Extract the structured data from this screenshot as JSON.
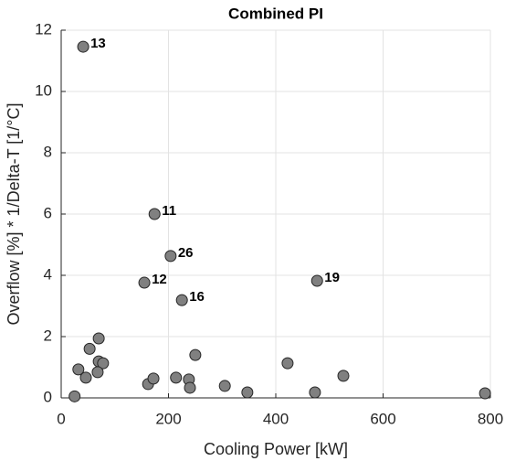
{
  "chart_data": {
    "type": "scatter",
    "title": "Combined PI",
    "xlabel": "Cooling Power [kW]",
    "ylabel": "Overflow [%] * 1/Delta-T [1/°C]",
    "xlim": [
      0,
      800
    ],
    "ylim": [
      0,
      12
    ],
    "xticks": [
      0,
      200,
      400,
      600,
      800
    ],
    "yticks": [
      0,
      2,
      4,
      6,
      8,
      10,
      12
    ],
    "grid": true,
    "color": "#808080",
    "x": [
      41,
      174,
      204,
      155,
      225,
      477,
      25,
      32,
      46,
      53,
      70,
      70,
      78,
      68,
      162,
      172,
      214,
      238,
      240,
      250,
      305,
      347,
      422,
      473,
      526,
      790
    ],
    "values": [
      11.46,
      6.0,
      4.63,
      3.76,
      3.19,
      3.82,
      0.05,
      0.93,
      0.66,
      1.6,
      1.94,
      1.19,
      1.13,
      0.84,
      0.45,
      0.63,
      0.66,
      0.6,
      0.33,
      1.4,
      0.39,
      0.18,
      1.13,
      0.18,
      0.72,
      0.15
    ],
    "point_labels": [
      "13",
      "11",
      "26",
      "12",
      "16",
      "19",
      null,
      null,
      null,
      null,
      null,
      null,
      null,
      null,
      null,
      null,
      null,
      null,
      null,
      null,
      null,
      null,
      null,
      null,
      null,
      null
    ]
  }
}
